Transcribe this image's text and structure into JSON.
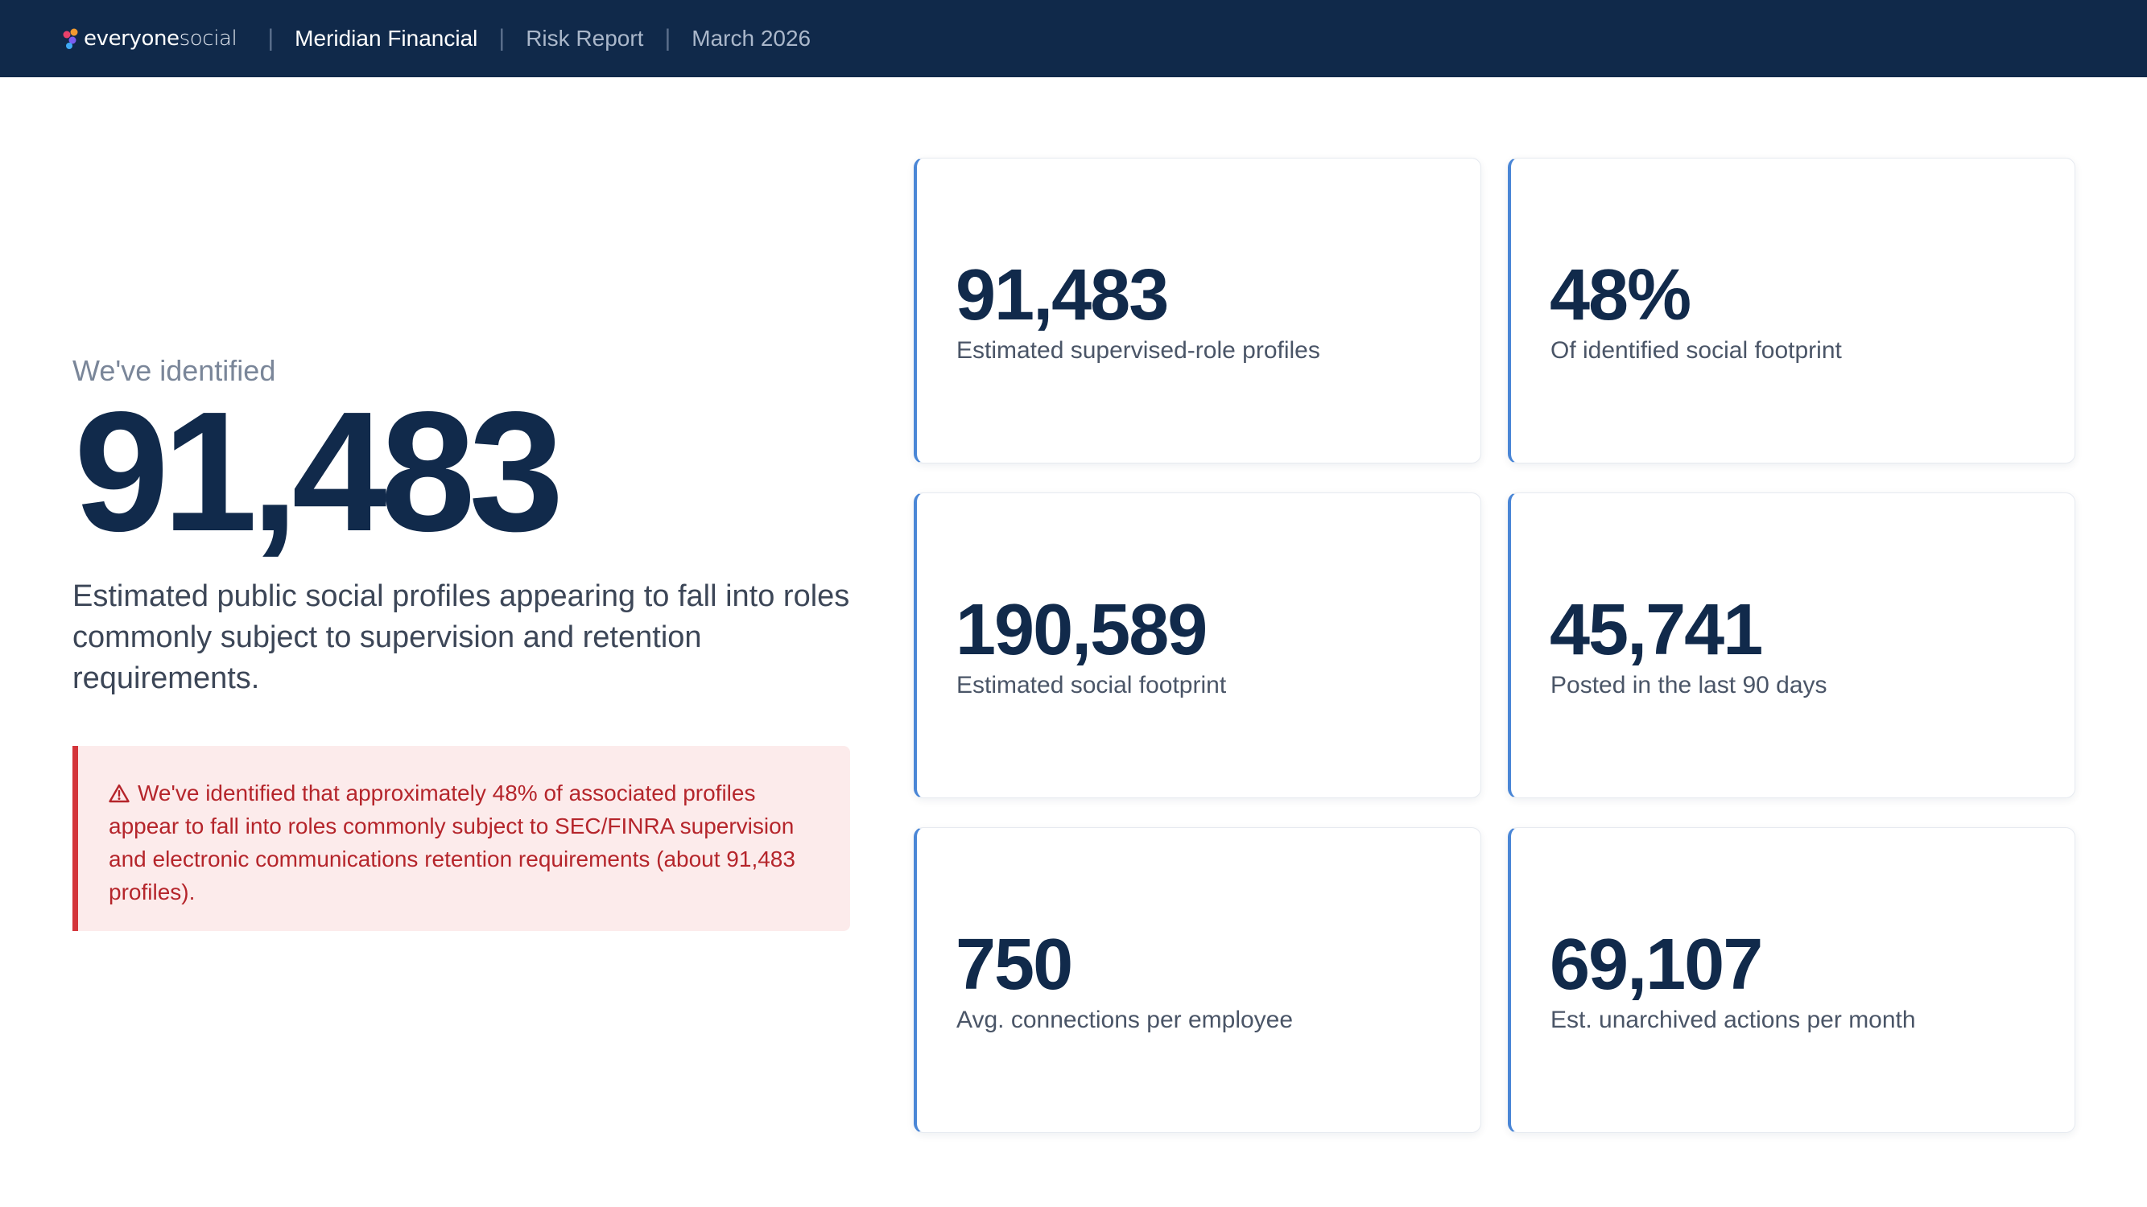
{
  "header": {
    "logo_text_bold": "everyone",
    "logo_text_light": "social",
    "company": "Meridian Financial",
    "report": "Risk Report",
    "date": "March 2026",
    "separator": "|"
  },
  "hero": {
    "eyebrow": "We've identified",
    "number": "91,483",
    "description": "Estimated public social profiles appearing to fall into roles commonly subject to supervision and retention requirements."
  },
  "alert": {
    "icon": "warning-triangle-icon",
    "text": "We've identified that approximately 48% of associated profiles appear to fall into roles commonly subject to SEC/FINRA supervision and electronic communications retention requirements (about 91,483 profiles)."
  },
  "cards": [
    {
      "value": "91,483",
      "label": "Estimated supervised-role profiles"
    },
    {
      "value": "48%",
      "label": "Of identified social footprint"
    },
    {
      "value": "190,589",
      "label": "Estimated social footprint"
    },
    {
      "value": "45,741",
      "label": "Posted in the last 90 days"
    },
    {
      "value": "750",
      "label": "Avg. connections per employee"
    },
    {
      "value": "69,107",
      "label": "Est. unarchived actions per month"
    }
  ],
  "colors": {
    "nav_background": "#10294a",
    "accent": "#4a86d6",
    "alert_red": "#d4343a",
    "alert_background": "#fcebeb",
    "primary_text": "#112a4b"
  }
}
